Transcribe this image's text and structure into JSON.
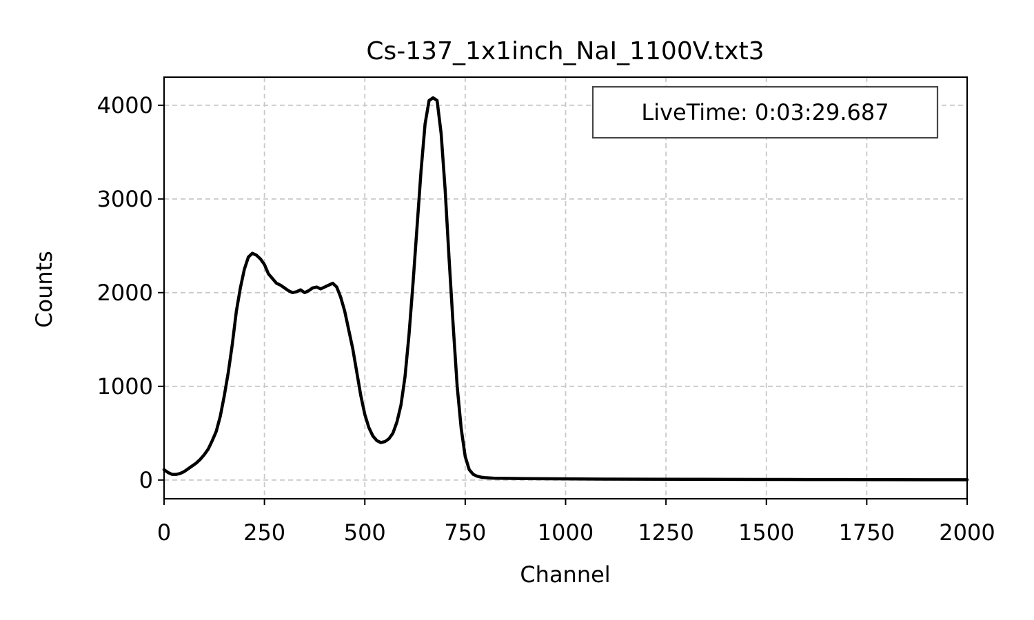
{
  "chart_data": {
    "type": "line",
    "title": "Cs-137_1x1inch_NaI_1100V.txt3",
    "xlabel": "Channel",
    "ylabel": "Counts",
    "xlim": [
      0,
      2000
    ],
    "ylim": [
      -200,
      4300
    ],
    "xticks": [
      0,
      250,
      500,
      750,
      1000,
      1250,
      1500,
      1750,
      2000
    ],
    "yticks": [
      0,
      1000,
      2000,
      3000,
      4000
    ],
    "xtick_labels": [
      "0",
      "250",
      "500",
      "750",
      "1000",
      "1250",
      "1500",
      "1750",
      "2000"
    ],
    "ytick_labels": [
      "0",
      "1000",
      "2000",
      "3000",
      "4000"
    ],
    "grid": true,
    "legend": {
      "text": "LiveTime: 0:03:29.687",
      "placement": "top-right"
    },
    "colors": {
      "line": "#000000",
      "grid": "#c8c8c8",
      "legend_border": "#444444"
    },
    "series": [
      {
        "x": [
          0,
          10,
          20,
          30,
          40,
          50,
          60,
          70,
          80,
          90,
          100,
          110,
          120,
          130,
          140,
          150,
          160,
          170,
          180,
          190,
          200,
          210,
          220,
          230,
          240,
          250,
          260,
          270,
          280,
          290,
          300,
          310,
          320,
          330,
          340,
          350,
          360,
          370,
          380,
          390,
          400,
          410,
          420,
          430,
          440,
          450,
          460,
          470,
          480,
          490,
          500,
          510,
          520,
          530,
          540,
          550,
          560,
          570,
          580,
          590,
          600,
          610,
          620,
          630,
          640,
          650,
          660,
          670,
          680,
          690,
          700,
          710,
          720,
          730,
          740,
          750,
          760,
          770,
          780,
          790,
          800,
          820,
          850,
          900,
          1000,
          1100,
          1200,
          1300,
          1400,
          1500,
          1600,
          1700,
          1800,
          1900,
          2000
        ],
        "y": [
          110,
          80,
          60,
          60,
          70,
          90,
          120,
          150,
          180,
          220,
          270,
          330,
          420,
          520,
          680,
          900,
          1150,
          1450,
          1800,
          2050,
          2250,
          2380,
          2420,
          2400,
          2360,
          2300,
          2200,
          2150,
          2100,
          2080,
          2050,
          2020,
          2000,
          2010,
          2030,
          2000,
          2020,
          2050,
          2060,
          2040,
          2060,
          2080,
          2100,
          2060,
          1950,
          1800,
          1600,
          1400,
          1150,
          900,
          700,
          560,
          470,
          420,
          400,
          410,
          440,
          500,
          620,
          800,
          1100,
          1550,
          2100,
          2700,
          3300,
          3800,
          4050,
          4080,
          4050,
          3700,
          3100,
          2350,
          1650,
          1000,
          550,
          250,
          110,
          60,
          40,
          30,
          25,
          20,
          18,
          15,
          12,
          10,
          9,
          8,
          7,
          6,
          5,
          5,
          4,
          3,
          3
        ]
      }
    ]
  }
}
